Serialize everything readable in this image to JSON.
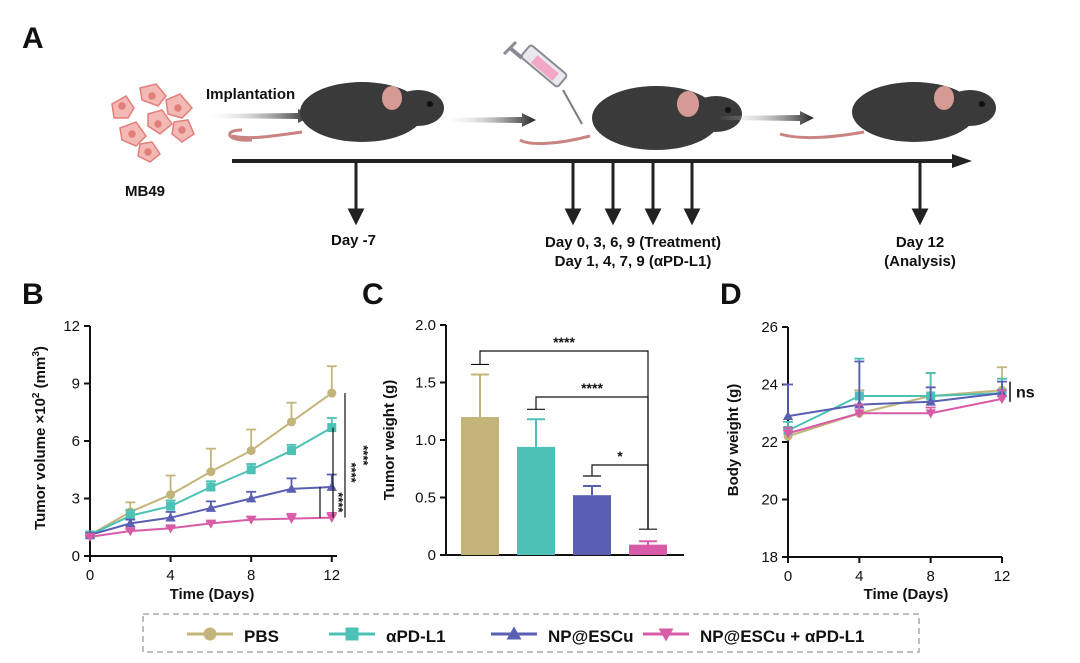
{
  "colors": {
    "pbs": "#c3b57a",
    "apdl1": "#4cc1b5",
    "np": "#5a5fb2",
    "combo": "#d85ba8",
    "axis": "#111111"
  },
  "panel_a": {
    "label": "A",
    "cells_label": "MB49",
    "implantation_label": "Implantation",
    "day_minus7": "Day -7",
    "treatment_line1": "Day 0, 3, 6, 9 (Treatment)",
    "treatment_line2": "Day 1, 4, 7, 9 (αPD-L1)",
    "analysis_line1": "Day 12",
    "analysis_line2": "(Analysis)"
  },
  "panel_b": {
    "label": "B"
  },
  "panel_c": {
    "label": "C"
  },
  "panel_d": {
    "label": "D"
  },
  "legend": {
    "pbs": "PBS",
    "apdl1": "αPD-L1",
    "np": "NP@ESCu",
    "combo": "NP@ESCu + αPD-L1"
  },
  "chart_data": [
    {
      "id": "B",
      "type": "line",
      "xlabel": "Time (Days)",
      "ylabel_main": "Tumor volume ×10",
      "ylabel_exp": "2",
      "ylabel_unit_a": " (mm",
      "ylabel_unit_exp": "3",
      "ylabel_unit_b": ")",
      "xlim": [
        0,
        13.5
      ],
      "ylim": [
        0,
        12
      ],
      "xticks": [
        0,
        4,
        8,
        12
      ],
      "yticks": [
        0,
        3,
        6,
        9,
        12
      ],
      "x": [
        0,
        2,
        4,
        6,
        8,
        10,
        12
      ],
      "series": [
        {
          "name": "PBS",
          "key": "pbs",
          "marker": "circle",
          "values": [
            1.1,
            2.3,
            3.2,
            4.4,
            5.5,
            7.0,
            8.5
          ],
          "errors": [
            0.15,
            0.5,
            1.0,
            1.2,
            1.1,
            1.0,
            1.4
          ]
        },
        {
          "name": "αPD-L1",
          "key": "apdl1",
          "marker": "square",
          "values": [
            1.1,
            2.1,
            2.6,
            3.6,
            4.5,
            5.5,
            6.7
          ],
          "errors": [
            0.1,
            0.3,
            0.3,
            0.3,
            0.3,
            0.3,
            0.5
          ]
        },
        {
          "name": "NP@ESCu",
          "key": "np",
          "marker": "triangle",
          "values": [
            1.1,
            1.7,
            2.0,
            2.5,
            3.0,
            3.5,
            3.6
          ],
          "errors": [
            0.1,
            0.2,
            0.3,
            0.35,
            0.35,
            0.55,
            0.65
          ]
        },
        {
          "name": "NP@ESCu + αPD-L1",
          "key": "combo",
          "marker": "triangle-down",
          "values": [
            1.0,
            1.3,
            1.45,
            1.7,
            1.9,
            1.95,
            2.0
          ],
          "errors": [
            0.05,
            0.1,
            0.1,
            0.1,
            0.15,
            0.25,
            0.25
          ]
        }
      ],
      "significance": [
        {
          "label": "****",
          "from": 8.5,
          "to": 2.0
        },
        {
          "label": "****",
          "from": 6.7,
          "to": 2.0
        },
        {
          "label": "****",
          "from": 3.6,
          "to": 2.0
        }
      ]
    },
    {
      "id": "C",
      "type": "bar",
      "ylabel": "Tumor weight (g)",
      "ylim": [
        0,
        2.0
      ],
      "yticks": [
        "0",
        "0.5",
        "1.0",
        "1.5",
        "2.0"
      ],
      "categories": [
        "PBS",
        "αPD-L1",
        "NP@ESCu",
        "NP@ESCu + αPD-L1"
      ],
      "keys": [
        "pbs",
        "apdl1",
        "np",
        "combo"
      ],
      "values": [
        1.2,
        0.94,
        0.52,
        0.09
      ],
      "errors": [
        0.37,
        0.24,
        0.08,
        0.03
      ],
      "significance": [
        {
          "label": "****",
          "from": 0,
          "to": 3
        },
        {
          "label": "****",
          "from": 1,
          "to": 3
        },
        {
          "label": "*",
          "from": 2,
          "to": 3
        }
      ]
    },
    {
      "id": "D",
      "type": "line",
      "xlabel": "Time (Days)",
      "ylabel": "Body weight (g)",
      "xlim": [
        0,
        12
      ],
      "ylim": [
        18,
        26
      ],
      "xticks": [
        0,
        4,
        8,
        12
      ],
      "yticks": [
        18,
        20,
        22,
        24,
        26
      ],
      "x": [
        0,
        4,
        8,
        12
      ],
      "series": [
        {
          "name": "PBS",
          "key": "pbs",
          "marker": "circle",
          "values": [
            22.2,
            23.0,
            23.6,
            23.8
          ],
          "errors": [
            0.2,
            0.8,
            0.8,
            0.8
          ]
        },
        {
          "name": "αPD-L1",
          "key": "apdl1",
          "marker": "square",
          "values": [
            22.4,
            23.6,
            23.6,
            23.7
          ],
          "errors": [
            0.3,
            1.3,
            0.8,
            0.5
          ]
        },
        {
          "name": "NP@ESCu",
          "key": "np",
          "marker": "triangle",
          "values": [
            22.9,
            23.3,
            23.4,
            23.7
          ],
          "errors": [
            1.1,
            1.5,
            0.5,
            0.4
          ]
        },
        {
          "name": "NP@ESCu + αPD-L1",
          "key": "combo",
          "marker": "triangle-down",
          "values": [
            22.3,
            23.0,
            23.0,
            23.5
          ],
          "errors": [
            0.2,
            0.3,
            0.2,
            0.3
          ]
        }
      ],
      "significance": [
        {
          "label": "ns"
        }
      ]
    }
  ]
}
